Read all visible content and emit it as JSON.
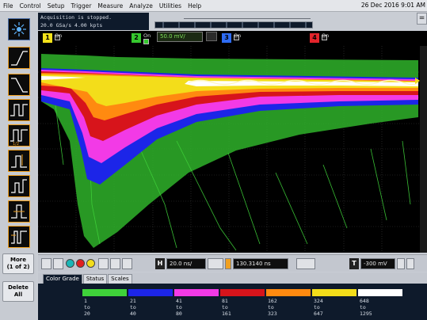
{
  "menubar": {
    "items": [
      "File",
      "Control",
      "Setup",
      "Trigger",
      "Measure",
      "Analyze",
      "Utilities",
      "Help"
    ],
    "clock": "26 Dec 2016  9:01 AM"
  },
  "status": {
    "line1": "Acquisition is stopped.",
    "line2": "20.0 GSa/s   4.00 kpts"
  },
  "window_button": "=",
  "channels": [
    {
      "number": "1",
      "color": "#f4e21a",
      "state": "On"
    },
    {
      "number": "2",
      "color": "#35c72e",
      "state": "On",
      "scale": "50.0 mV/"
    },
    {
      "number": "3",
      "color": "#2e6cf5",
      "state": "On"
    },
    {
      "number": "4",
      "color": "#e3242b",
      "state": "On"
    }
  ],
  "left_toolbar": {
    "more": {
      "line1": "More",
      "line2": "(1 of 2)"
    },
    "delete_all": {
      "line1": "Delete",
      "line2": "All"
    }
  },
  "controls": {
    "timebase": "20.0 ns/",
    "delay": "130.3140 ns",
    "trigger_level": "-300 mV"
  },
  "tabs": [
    "Color Grade",
    "Status",
    "Scales"
  ],
  "color_grade": [
    {
      "color": "#3fd23a",
      "from": "1",
      "to_word": "to",
      "to": "20"
    },
    {
      "color": "#1c25e8",
      "from": "21",
      "to_word": "to",
      "to": "40"
    },
    {
      "color": "#f23ae6",
      "from": "41",
      "to_word": "to",
      "to": "80"
    },
    {
      "color": "#d7141b",
      "from": "81",
      "to_word": "to",
      "to": "161"
    },
    {
      "color": "#ff8a10",
      "from": "162",
      "to_word": "to",
      "to": "323"
    },
    {
      "color": "#f3dd1a",
      "from": "324",
      "to_word": "to",
      "to": "647"
    },
    {
      "color": "#ffffff",
      "from": "648",
      "to_word": "to",
      "to": "1295"
    }
  ]
}
